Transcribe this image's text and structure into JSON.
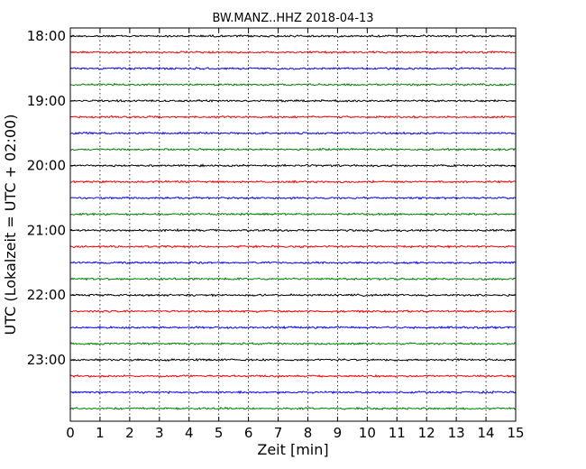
{
  "chart_data": {
    "type": "line",
    "title": "BW.MANZ..HHZ 2018-04-13",
    "xlabel": "Zeit  [min]",
    "ylabel": "UTC (Lokalzeit = UTC + 02:00)",
    "xlim": [
      0,
      15
    ],
    "x_ticks": [
      "0",
      "1",
      "2",
      "3",
      "4",
      "5",
      "6",
      "7",
      "8",
      "9",
      "10",
      "11",
      "12",
      "13",
      "14",
      "15"
    ],
    "y_tick_labels": [
      "18:00",
      "19:00",
      "20:00",
      "21:00",
      "22:00",
      "23:00"
    ],
    "grid": "vertical dotted at each minute",
    "trace_colors": [
      "#000000",
      "#ff0000",
      "#0000ff",
      "#008000"
    ],
    "traces": [
      {
        "start": "18:00"
      },
      {
        "start": "18:15"
      },
      {
        "start": "18:30"
      },
      {
        "start": "18:45"
      },
      {
        "start": "19:00"
      },
      {
        "start": "19:15"
      },
      {
        "start": "19:30"
      },
      {
        "start": "19:45"
      },
      {
        "start": "20:00"
      },
      {
        "start": "20:15"
      },
      {
        "start": "20:30"
      },
      {
        "start": "20:45"
      },
      {
        "start": "21:00"
      },
      {
        "start": "21:15"
      },
      {
        "start": "21:30"
      },
      {
        "start": "21:45"
      },
      {
        "start": "22:00"
      },
      {
        "start": "22:15"
      },
      {
        "start": "22:30"
      },
      {
        "start": "22:45"
      },
      {
        "start": "23:00"
      },
      {
        "start": "23:15"
      },
      {
        "start": "23:30"
      },
      {
        "start": "23:45"
      }
    ]
  }
}
